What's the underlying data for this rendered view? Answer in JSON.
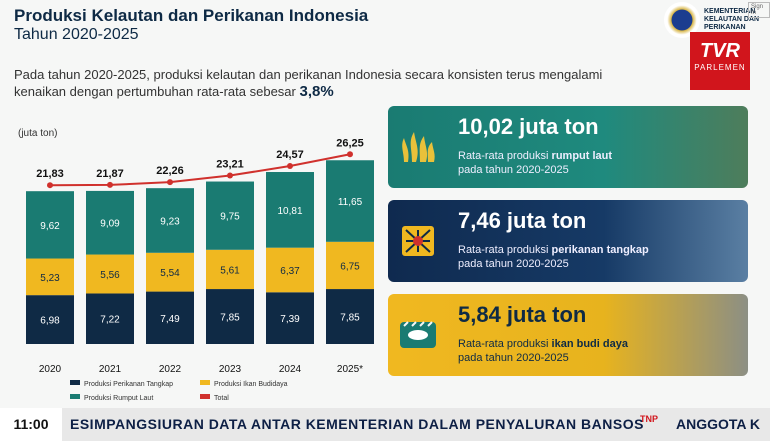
{
  "header": {
    "title": "Produksi Kelautan dan Perikanan Indonesia",
    "subtitle": "Tahun 2020-2025",
    "description": "Pada tahun 2020-2025, produksi kelautan dan perikanan Indonesia secara konsisten terus mengalami",
    "description2": "kenaikan dengan pertumbuhan rata-rata sebesar",
    "growth": "3,8%"
  },
  "logo": {
    "ministry": "KEMENTERIAN KELAUTAN DAN PERIKANAN",
    "signin": "Sign In"
  },
  "broadcaster": {
    "brand": "TVR",
    "sub": "PARLEMEN"
  },
  "chart_data": {
    "type": "bar",
    "unit_label": "(juta ton)",
    "categories": [
      "2020",
      "2021",
      "2022",
      "2023",
      "2024",
      "2025*"
    ],
    "series": [
      {
        "name": "Produksi Perikanan Tangkap",
        "values": [
          6.98,
          7.22,
          7.49,
          7.85,
          7.39,
          7.85
        ],
        "labels": [
          "6,98",
          "7,22",
          "7,49",
          "7,85",
          "7,39",
          "7,85"
        ],
        "color": "#0f2a45"
      },
      {
        "name": "Produksi Ikan Budidaya",
        "values": [
          5.23,
          5.56,
          5.54,
          5.61,
          6.37,
          6.75
        ],
        "labels": [
          "5,23",
          "5,56",
          "5,54",
          "5,61",
          "6,37",
          "6,75"
        ],
        "color": "#f0b820"
      },
      {
        "name": "Produksi Rumput Laut",
        "values": [
          9.62,
          9.09,
          9.23,
          9.75,
          10.81,
          11.65
        ],
        "labels": [
          "9,62",
          "9,09",
          "9,23",
          "9,75",
          "10,81",
          "11,65"
        ],
        "color": "#1a7b72"
      }
    ],
    "total": {
      "name": "Total",
      "values": [
        21.83,
        21.87,
        22.26,
        23.21,
        24.57,
        26.25
      ],
      "labels": [
        "21,83",
        "21,87",
        "22,26",
        "23,21",
        "24,57",
        "26,25"
      ],
      "color": "#d0312d"
    },
    "ylim": [
      0,
      28
    ]
  },
  "cards": [
    {
      "value": "10,02 juta ton",
      "line1_pre": "Rata-rata produksi ",
      "line1_bold": "rumput laut",
      "line2": "pada tahun 2020-2025"
    },
    {
      "value": "7,46 juta ton",
      "line1_pre": "Rata-rata produksi ",
      "line1_bold": "perikanan tangkap",
      "line2": "pada tahun 2020-2025"
    },
    {
      "value": "5,84 juta ton",
      "line1_pre": "Rata-rata produksi ",
      "line1_bold": "ikan budi daya",
      "line2": "pada tahun 2020-2025"
    }
  ],
  "ticker": {
    "time": "11:00",
    "text": "ESIMPANGSIURAN DATA ANTAR KEMENTERIAN DALAM PENYALURAN BANSOS",
    "brand": "TNP",
    "next": "ANGGOTA K"
  }
}
